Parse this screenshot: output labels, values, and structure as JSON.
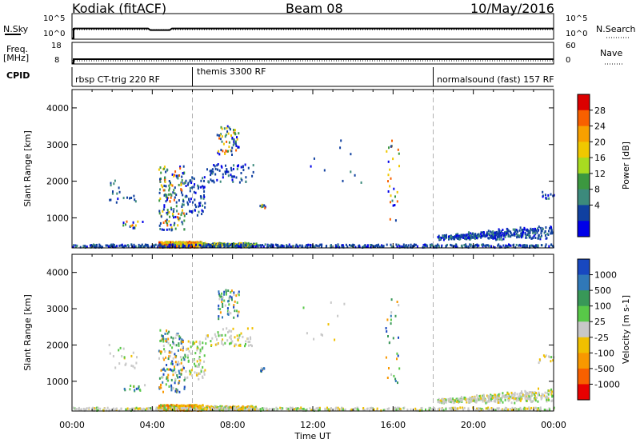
{
  "header": {
    "station": "Kodiak (fitACF)",
    "beam": "Beam 08",
    "date": "10/May/2016"
  },
  "top_panels": {
    "nsky_label": "N.Sky",
    "nsearch_label": "N.Search",
    "ticks_left": [
      "10^5",
      "10^0"
    ],
    "ticks_right": [
      "10^5",
      "10^0"
    ],
    "freq_label": "Freq.",
    "freq_unit": "[MHz]",
    "freq_ticks": [
      "18",
      "8"
    ],
    "nave_label": "Nave",
    "nave_ticks": [
      "60",
      "0"
    ],
    "cpid_label": "CPID",
    "cpid_segments": [
      {
        "label": "rbsp CT-trig 220 RF",
        "start_hour": 0
      },
      {
        "label": "themis 3300 RF",
        "start_hour": 6
      },
      {
        "label": "normalsound (fast) 157 RF",
        "start_hour": 18
      }
    ]
  },
  "chart_data": [
    {
      "type": "heatmap",
      "name": "power",
      "ylabel": "Slant Range [km]",
      "xlabel": "Time UT",
      "x_range_hours": [
        0,
        24
      ],
      "ylim": [
        180,
        4500
      ],
      "y_ticks": [
        "1000",
        "2000",
        "3000",
        "4000"
      ],
      "x_ticks": [
        "00:00",
        "04:00",
        "08:00",
        "12:00",
        "16:00",
        "20:00",
        "00:00"
      ],
      "colorbar": {
        "label": "Power [dB]",
        "ticks": [
          "28",
          "24",
          "20",
          "16",
          "12",
          "8",
          "4"
        ],
        "colors": [
          "#dc0000",
          "#f86000",
          "#f8a000",
          "#f0c800",
          "#a8dc20",
          "#3c9840",
          "#3c8a7c",
          "#1040a0",
          "#0000e8"
        ]
      }
    },
    {
      "type": "heatmap",
      "name": "velocity",
      "ylabel": "Slant Range [km]",
      "xlabel": "Time UT",
      "x_range_hours": [
        0,
        24
      ],
      "ylim": [
        180,
        4500
      ],
      "y_ticks": [
        "1000",
        "2000",
        "3000",
        "4000"
      ],
      "x_ticks": [
        "00:00",
        "04:00",
        "08:00",
        "12:00",
        "16:00",
        "20:00",
        "00:00"
      ],
      "colorbar": {
        "label": "Velocity [m s-1]",
        "ticks": [
          "1000",
          "500",
          "100",
          "25",
          "-25",
          "-100",
          "-500",
          "-1000"
        ],
        "colors": [
          "#1848c0",
          "#3078b8",
          "#389858",
          "#58c848",
          "#c8c8c8",
          "#f0c000",
          "#f89800",
          "#f86000",
          "#e80000"
        ]
      }
    }
  ],
  "axis_title": "Time UT"
}
